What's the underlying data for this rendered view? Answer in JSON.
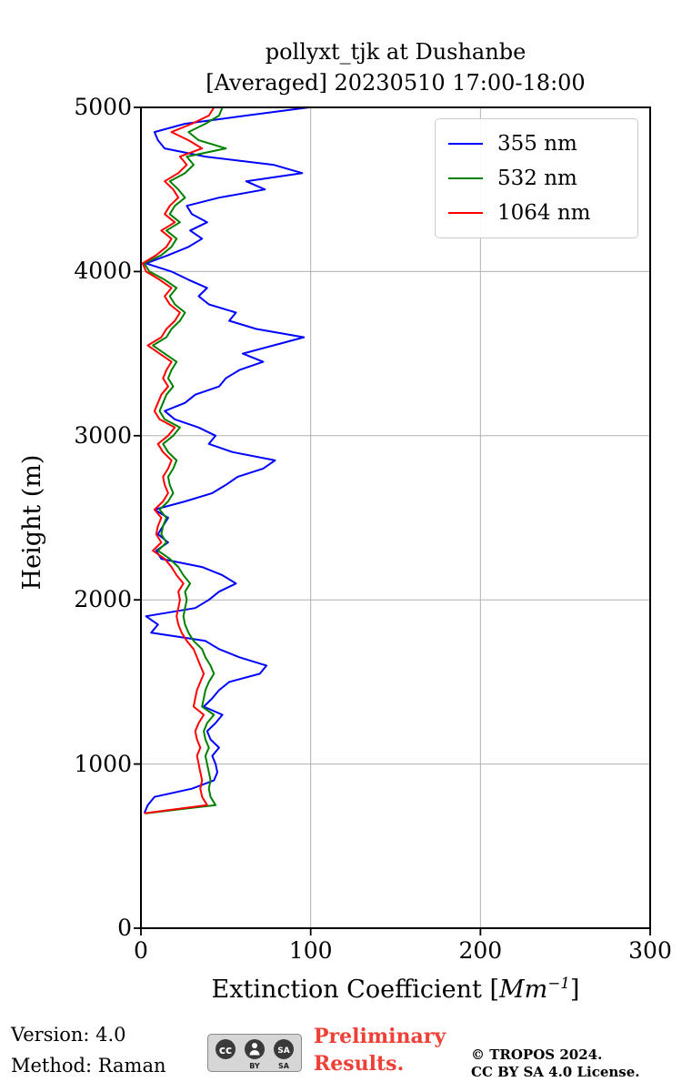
{
  "title_line1": "pollyxt_tjk at Dushanbe",
  "title_line2": "[Averaged] 20230510 17:00-18:00",
  "ylabel": "Height (m)",
  "xlabel": {
    "prefix": "Extinction Coefficient [",
    "math": "Mm",
    "sup": "−1",
    "suffix": "]"
  },
  "footer": {
    "version": "Version: 4.0",
    "method": "Method: Raman",
    "preliminary_line1": "Preliminary",
    "preliminary_line2": "Results.",
    "preliminary_color": "#ee4036",
    "copyright_line1": "© TROPOS 2024.",
    "copyright_line2": "CC BY SA 4.0 License.",
    "cc_badge": {
      "cc": "cc",
      "by": "BY",
      "sa": "SA"
    }
  },
  "chart_data": {
    "type": "line",
    "title": "pollyxt_tjk at Dushanbe [Averaged] 20230510 17:00-18:00",
    "xlabel": "Extinction Coefficient [Mm^-1]",
    "ylabel": "Height (m)",
    "xlim": [
      0,
      300
    ],
    "ylim": [
      0,
      5000
    ],
    "xticks": [
      0,
      100,
      200,
      300
    ],
    "yticks": [
      0,
      1000,
      2000,
      3000,
      4000,
      5000
    ],
    "grid": true,
    "legend_position": "upper right",
    "heights": [
      700,
      750,
      800,
      850,
      900,
      950,
      1000,
      1050,
      1100,
      1150,
      1200,
      1250,
      1300,
      1350,
      1400,
      1450,
      1500,
      1550,
      1600,
      1650,
      1700,
      1750,
      1800,
      1850,
      1900,
      1950,
      2000,
      2050,
      2100,
      2150,
      2200,
      2250,
      2300,
      2350,
      2400,
      2450,
      2500,
      2550,
      2600,
      2650,
      2700,
      2750,
      2800,
      2850,
      2900,
      2950,
      3000,
      3050,
      3100,
      3150,
      3200,
      3250,
      3300,
      3350,
      3400,
      3450,
      3500,
      3550,
      3600,
      3650,
      3700,
      3750,
      3800,
      3850,
      3900,
      3950,
      4000,
      4050,
      4100,
      4150,
      4200,
      4250,
      4300,
      4350,
      4400,
      4450,
      4500,
      4550,
      4600,
      4650,
      4700,
      4750,
      4800,
      4850,
      4900,
      4950,
      5000
    ],
    "series": [
      {
        "name": "355 nm",
        "color": "#0000ff",
        "values": [
          2,
          4,
          8,
          30,
          43,
          45,
          44,
          42,
          46,
          41,
          39,
          44,
          48,
          37,
          42,
          46,
          52,
          70,
          74,
          58,
          46,
          38,
          6,
          10,
          3,
          32,
          40,
          46,
          56,
          48,
          36,
          12,
          9,
          16,
          10,
          13,
          16,
          8,
          26,
          42,
          50,
          57,
          72,
          79,
          54,
          40,
          44,
          34,
          20,
          14,
          26,
          32,
          46,
          50,
          58,
          72,
          60,
          78,
          96,
          68,
          52,
          56,
          40,
          34,
          39,
          28,
          18,
          3,
          16,
          28,
          36,
          29,
          39,
          30,
          27,
          46,
          73,
          62,
          95,
          78,
          38,
          14,
          10,
          8,
          26,
          62,
          99
        ]
      },
      {
        "name": "532 nm",
        "color": "#008000",
        "values": [
          3,
          44,
          41,
          40,
          41,
          40,
          39,
          38,
          40,
          38,
          37,
          39,
          43,
          36,
          37,
          38,
          40,
          43,
          41,
          38,
          36,
          31,
          28,
          26,
          25,
          26,
          27,
          26,
          29,
          25,
          22,
          17,
          10,
          15,
          12,
          13,
          15,
          11,
          16,
          19,
          17,
          16,
          19,
          21,
          16,
          13,
          19,
          23,
          14,
          11,
          13,
          15,
          19,
          16,
          18,
          21,
          14,
          7,
          15,
          18,
          23,
          26,
          20,
          17,
          21,
          14,
          5,
          2,
          12,
          18,
          21,
          15,
          23,
          17,
          20,
          26,
          22,
          17,
          26,
          31,
          27,
          50,
          34,
          28,
          38,
          46,
          48
        ]
      },
      {
        "name": "1064 nm",
        "color": "#ff0000",
        "values": [
          2,
          39,
          36,
          35,
          36,
          35,
          34,
          33,
          35,
          33,
          32,
          34,
          37,
          31,
          32,
          33,
          35,
          37,
          35,
          33,
          31,
          27,
          24,
          22,
          21,
          22,
          23,
          22,
          25,
          21,
          18,
          14,
          7,
          12,
          9,
          10,
          12,
          8,
          13,
          16,
          14,
          13,
          16,
          18,
          13,
          10,
          16,
          20,
          11,
          8,
          10,
          12,
          16,
          13,
          15,
          18,
          11,
          4,
          12,
          15,
          20,
          23,
          17,
          14,
          18,
          11,
          3,
          1,
          9,
          15,
          18,
          12,
          20,
          14,
          17,
          22,
          19,
          14,
          22,
          27,
          23,
          36,
          28,
          18,
          30,
          40,
          43
        ]
      }
    ]
  }
}
